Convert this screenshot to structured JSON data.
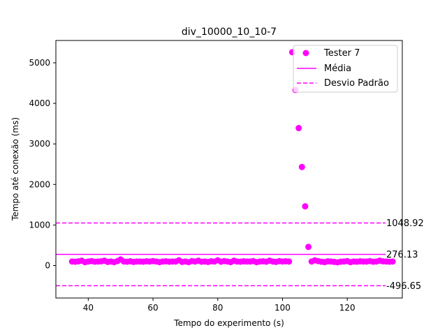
{
  "chart_data": {
    "type": "scatter",
    "title": "div_10000_10_10-7",
    "xlabel": "Tempo do experimento (s)",
    "ylabel": "Tempo até conexão (ms)",
    "xlim": [
      30,
      137
    ],
    "ylim": [
      -800,
      5550
    ],
    "xticks": [
      40,
      60,
      80,
      100,
      120
    ],
    "yticks": [
      0,
      1000,
      2000,
      3000,
      4000,
      5000
    ],
    "grid": false,
    "legend_position": "top-right",
    "legend": {
      "scatter_label": "Tester 7",
      "mean_label": "Média",
      "std_label": "Desvio Padrão"
    },
    "series": [
      {
        "name": "Tester 7",
        "color": "#ff00ff",
        "x": [
          35,
          36,
          37,
          38,
          39,
          40,
          41,
          42,
          43,
          44,
          45,
          46,
          47,
          48,
          49,
          50,
          51,
          52,
          53,
          54,
          55,
          56,
          57,
          58,
          59,
          60,
          61,
          62,
          63,
          64,
          65,
          66,
          67,
          68,
          69,
          70,
          71,
          72,
          73,
          74,
          75,
          76,
          77,
          78,
          79,
          80,
          81,
          82,
          83,
          84,
          85,
          86,
          87,
          88,
          89,
          90,
          91,
          92,
          93,
          94,
          95,
          96,
          97,
          98,
          99,
          100,
          101,
          102,
          103,
          104,
          105,
          106,
          107,
          108,
          109,
          110,
          111,
          112,
          113,
          114,
          115,
          116,
          117,
          118,
          119,
          120,
          121,
          122,
          123,
          124,
          125,
          126,
          127,
          128,
          129,
          130,
          131,
          132,
          133,
          134
        ],
        "y": [
          100,
          95,
          105,
          120,
          85,
          100,
          110,
          95,
          100,
          105,
          120,
          90,
          100,
          85,
          110,
          150,
          100,
          95,
          105,
          90,
          100,
          100,
          95,
          105,
          100,
          110,
          100,
          85,
          100,
          105,
          95,
          100,
          100,
          130,
          90,
          100,
          85,
          110,
          100,
          120,
          95,
          100,
          90,
          105,
          100,
          130,
          95,
          110,
          100,
          85,
          120,
          100,
          95,
          105,
          100,
          100,
          110,
          85,
          100,
          105,
          95,
          120,
          100,
          90,
          110,
          100,
          105,
          100,
          5260,
          4330,
          3390,
          2430,
          1460,
          460,
          100,
          130,
          110,
          95,
          85,
          105,
          100,
          90,
          80,
          95,
          100,
          110,
          85,
          100,
          95,
          105,
          100,
          100,
          110,
          95,
          100,
          120,
          105,
          100,
          95,
          100
        ]
      }
    ],
    "mean": 276.13,
    "std_upper": 1048.92,
    "std_lower": -496.65,
    "mean_label_text": "276.13",
    "std_upper_label_text": "1048.92",
    "std_lower_label_text": "-496.65",
    "colors": {
      "marker": "#ff00ff",
      "mean_line": "#ff00ff",
      "std_line": "#ff00ff",
      "axes": "#000000"
    }
  }
}
